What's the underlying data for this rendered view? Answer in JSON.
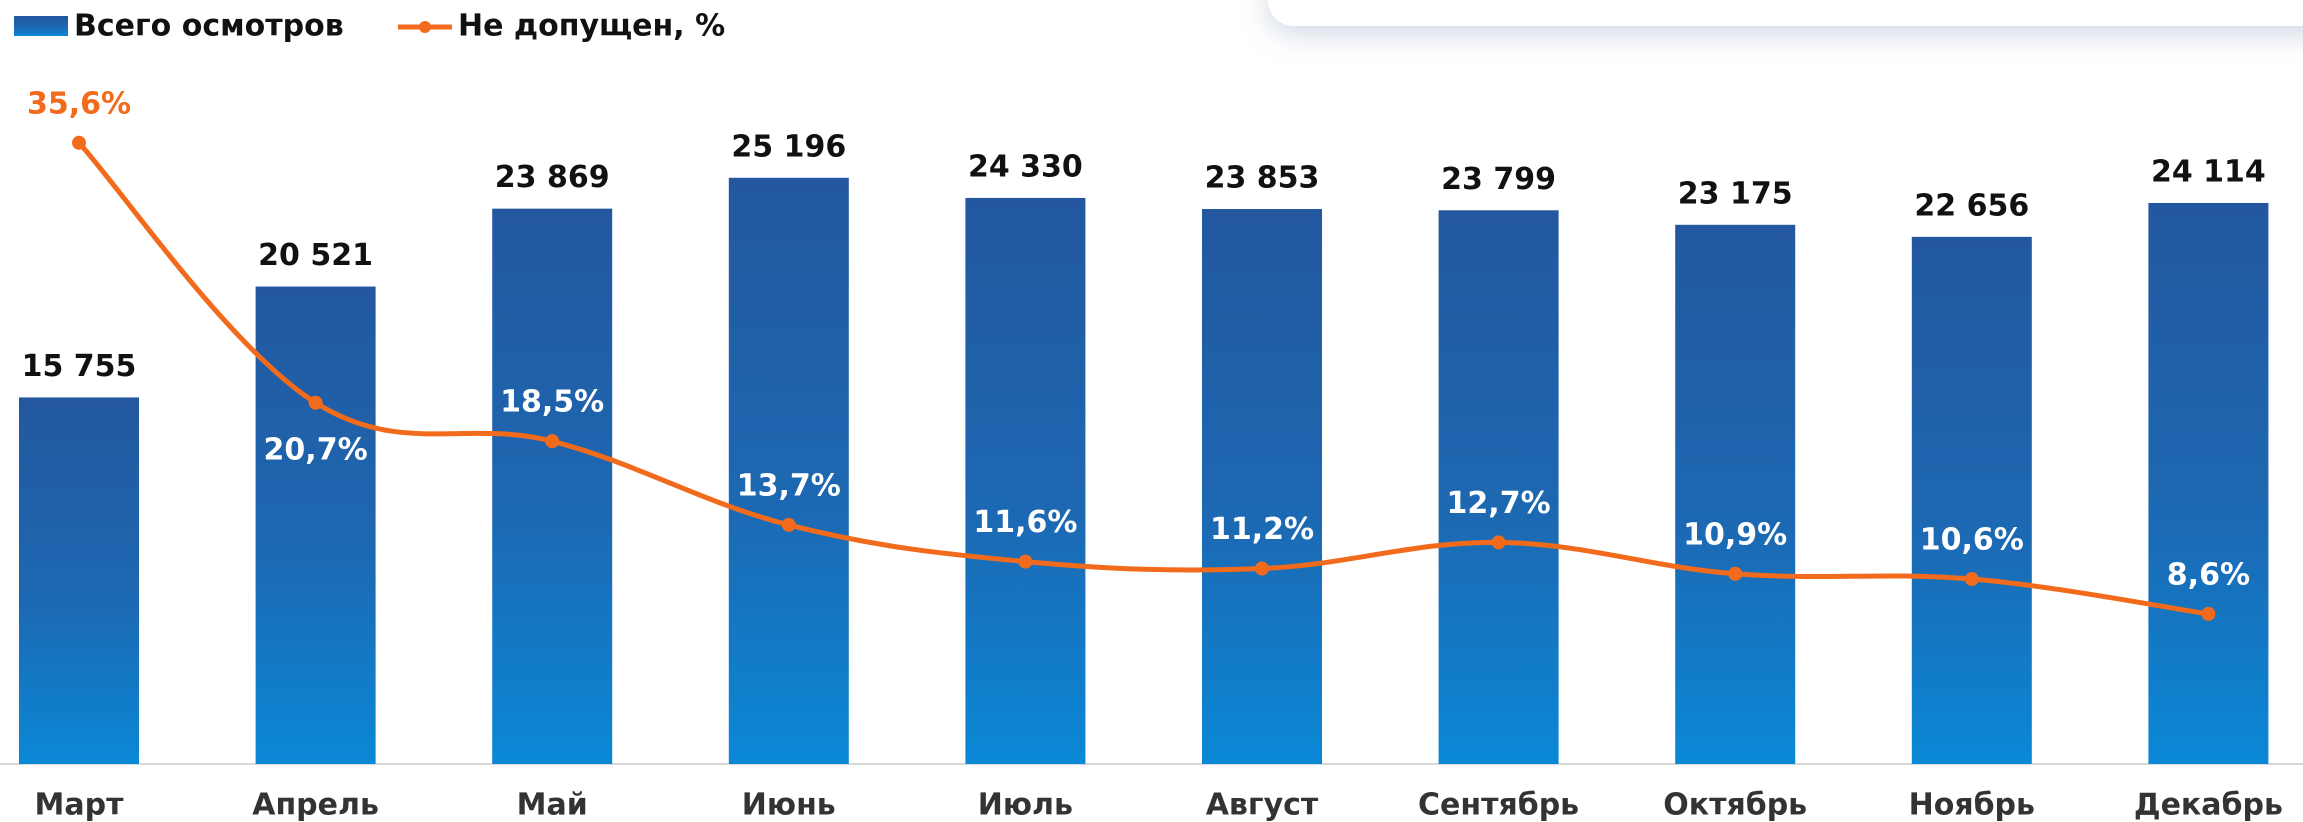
{
  "chart_data": {
    "type": "bar_line",
    "categories": [
      "Март",
      "Апрель",
      "Май",
      "Июнь",
      "Июль",
      "Август",
      "Сентябрь",
      "Октябрь",
      "Ноябрь",
      "Декабрь"
    ],
    "series": [
      {
        "name": "Всего осмотров",
        "type": "bar",
        "color": "#2358a0",
        "values": [
          15755,
          20521,
          23869,
          25196,
          24330,
          23853,
          23799,
          23175,
          22656,
          24114
        ],
        "value_labels": [
          "15 755",
          "20 521",
          "23 869",
          "25 196",
          "24 330",
          "23 853",
          "23 799",
          "23 175",
          "22 656",
          "24 114"
        ]
      },
      {
        "name": "Не допущен, %",
        "type": "line",
        "axis": "y2",
        "color": "#f26a1b",
        "values": [
          35.6,
          20.7,
          18.5,
          13.7,
          11.6,
          11.2,
          12.7,
          10.9,
          10.6,
          8.6
        ],
        "value_labels": [
          "35,6%",
          "20,7%",
          "18,5%",
          "13,7%",
          "11,6%",
          "11,2%",
          "12,7%",
          "10,9%",
          "10,6%",
          "8,6%"
        ]
      }
    ],
    "ylim": [
      0,
      30000
    ],
    "y2lim": [
      0,
      40
    ],
    "legend": "top-left"
  }
}
